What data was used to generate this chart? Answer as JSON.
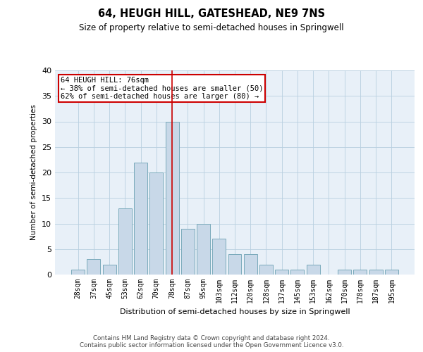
{
  "title": "64, HEUGH HILL, GATESHEAD, NE9 7NS",
  "subtitle": "Size of property relative to semi-detached houses in Springwell",
  "xlabel": "Distribution of semi-detached houses by size in Springwell",
  "ylabel": "Number of semi-detached properties",
  "categories": [
    "28sqm",
    "37sqm",
    "45sqm",
    "53sqm",
    "62sqm",
    "70sqm",
    "78sqm",
    "87sqm",
    "95sqm",
    "103sqm",
    "112sqm",
    "120sqm",
    "128sqm",
    "137sqm",
    "145sqm",
    "153sqm",
    "162sqm",
    "170sqm",
    "178sqm",
    "187sqm",
    "195sqm"
  ],
  "values": [
    1,
    3,
    2,
    13,
    22,
    20,
    30,
    9,
    10,
    7,
    4,
    4,
    2,
    1,
    1,
    2,
    0,
    1,
    1,
    1,
    1
  ],
  "bar_color": "#c8d8e8",
  "bar_edge_color": "#7aaabb",
  "vline_x": 6,
  "vline_color": "#cc0000",
  "annotation_text": "64 HEUGH HILL: 76sqm\n← 38% of semi-detached houses are smaller (50)\n62% of semi-detached houses are larger (80) →",
  "annotation_box_color": "#ffffff",
  "annotation_box_edge": "#cc0000",
  "ylim": [
    0,
    40
  ],
  "yticks": [
    0,
    5,
    10,
    15,
    20,
    25,
    30,
    35,
    40
  ],
  "grid_color": "#b8cfe0",
  "bg_color": "#e8f0f8",
  "footer_line1": "Contains HM Land Registry data © Crown copyright and database right 2024.",
  "footer_line2": "Contains public sector information licensed under the Open Government Licence v3.0."
}
